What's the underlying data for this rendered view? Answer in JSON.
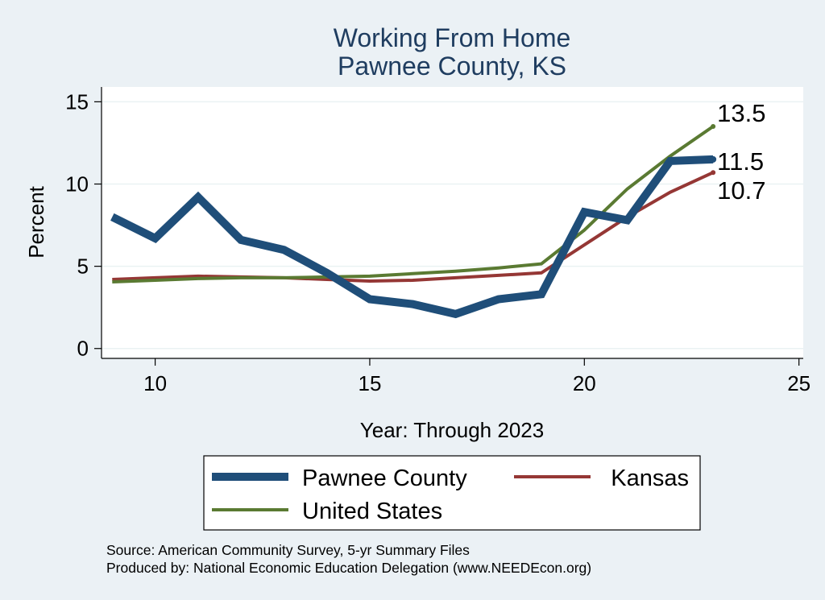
{
  "chart_data": {
    "type": "line",
    "title": "Working From Home",
    "subtitle": "Pawnee County, KS",
    "xlabel": "Year: Through 2023",
    "ylabel": "Percent",
    "xlim": [
      8.75,
      25.1
    ],
    "ylim": [
      -0.6,
      15.9
    ],
    "x_ticks": [
      10,
      15,
      20,
      25
    ],
    "y_ticks": [
      0,
      5,
      10,
      15
    ],
    "grid": true,
    "legend_position": "bottom",
    "series": [
      {
        "name": "Pawnee County",
        "color": "#1f4e79",
        "x": [
          9,
          10,
          11,
          12,
          13,
          14,
          15,
          16,
          17,
          18,
          19,
          20,
          21,
          22,
          23
        ],
        "y": [
          8.0,
          6.7,
          9.2,
          6.6,
          6.0,
          4.6,
          3.0,
          2.7,
          2.1,
          3.0,
          3.3,
          8.3,
          7.8,
          11.4,
          11.5
        ],
        "end_label": "11.5"
      },
      {
        "name": "Kansas",
        "color": "#953735",
        "x": [
          9,
          10,
          11,
          12,
          13,
          14,
          15,
          16,
          17,
          18,
          19,
          20,
          21,
          22,
          23
        ],
        "y": [
          4.2,
          4.3,
          4.4,
          4.35,
          4.3,
          4.2,
          4.1,
          4.15,
          4.3,
          4.45,
          4.6,
          6.3,
          8.0,
          9.5,
          10.7
        ],
        "end_label": "10.7"
      },
      {
        "name": "United States",
        "color": "#5a7a32",
        "x": [
          9,
          10,
          11,
          12,
          13,
          14,
          15,
          16,
          17,
          18,
          19,
          20,
          21,
          22,
          23
        ],
        "y": [
          4.05,
          4.15,
          4.25,
          4.3,
          4.3,
          4.35,
          4.4,
          4.55,
          4.7,
          4.9,
          5.15,
          7.2,
          9.7,
          11.7,
          13.5
        ],
        "end_label": "13.5"
      }
    ]
  },
  "source": {
    "line1": "Source: American Community Survey, 5-yr Summary Files",
    "line2": "Produced by: National Economic Education Delegation (www.NEEDEcon.org)"
  }
}
